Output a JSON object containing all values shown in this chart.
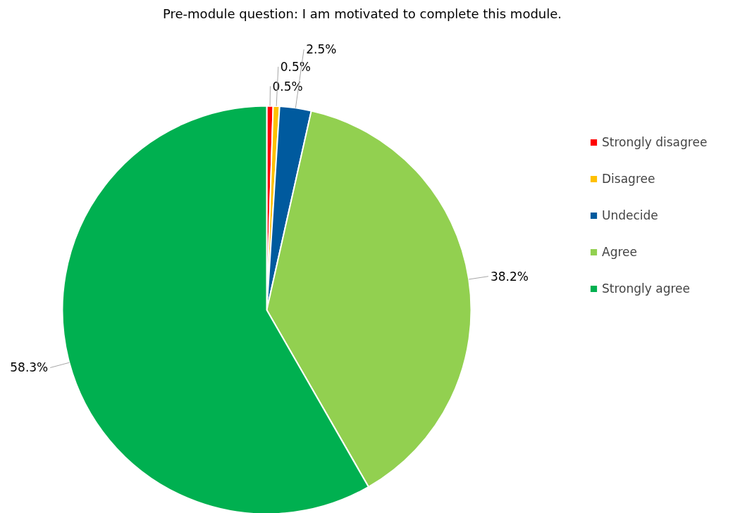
{
  "chart_data": {
    "type": "pie",
    "title": "Pre-module question: I am motivated to complete this module.",
    "categories": [
      "Strongly disagree",
      "Disagree",
      "Undecide",
      "Agree",
      "Strongly agree"
    ],
    "values": [
      0.5,
      0.5,
      2.5,
      38.2,
      58.3
    ],
    "colors": [
      "#ff0000",
      "#ffc000",
      "#005a9e",
      "#92d050",
      "#00b050"
    ],
    "value_labels": [
      "0.5%",
      "0.5%",
      "2.5%",
      "38.2%",
      "58.3%"
    ],
    "legend": "right"
  }
}
